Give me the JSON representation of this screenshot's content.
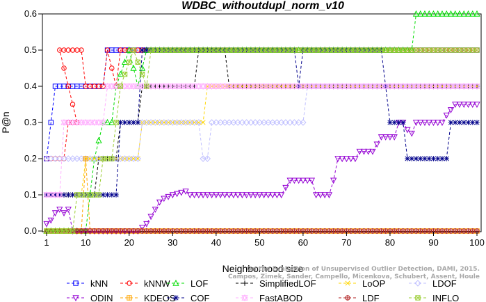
{
  "chart_data": {
    "type": "line",
    "title": "WDBC_withoutdupl_norm_v10",
    "xlabel": "Neighborhood size",
    "ylabel": "P@n",
    "xlim": [
      1,
      100
    ],
    "ylim": [
      0,
      0.6
    ],
    "x_ticks": [
      1,
      10,
      20,
      30,
      40,
      50,
      60,
      70,
      80,
      90,
      100
    ],
    "y_ticks": [
      0.0,
      0.1,
      0.2,
      0.3,
      0.4,
      0.5,
      0.6
    ],
    "grid": false,
    "legend_position": "bottom",
    "credit": "Campos, Zimek, Sander, Campello, Micenkova, Schubert, Assent, Houle\nOn the Evaluation of Unsupervised Outlier Detection, DAMI, 2015.",
    "series": [
      {
        "name": "kNN",
        "color": "#0000ff",
        "marker": "square",
        "points": [
          [
            1,
            0.2
          ],
          [
            2,
            0.3
          ],
          [
            3,
            0.4
          ],
          [
            14,
            0.4
          ],
          [
            15,
            0.5
          ],
          [
            100,
            0.5
          ]
        ]
      },
      {
        "name": "kNNW",
        "color": "#ff0000",
        "marker": "circle",
        "points": [
          [
            1,
            0.2
          ],
          [
            5,
            0.2
          ],
          [
            6,
            0.3
          ],
          [
            8,
            0.3
          ],
          [
            4,
            0.5
          ],
          [
            9,
            0.5
          ],
          [
            10,
            0.4
          ],
          [
            14,
            0.4
          ],
          [
            15,
            0.5
          ],
          [
            17,
            0.4
          ],
          [
            18,
            0.5
          ],
          [
            100,
            0.5
          ]
        ]
      },
      {
        "name": "LOF",
        "color": "#00dd00",
        "marker": "triangle-up",
        "points": [
          [
            1,
            0.0
          ],
          [
            10,
            0.0
          ],
          [
            11,
            0.1
          ],
          [
            12,
            0.2
          ],
          [
            14,
            0.3
          ],
          [
            16,
            0.3
          ],
          [
            17,
            0.4
          ],
          [
            20,
            0.5
          ],
          [
            22,
            0.4
          ],
          [
            24,
            0.5
          ],
          [
            85,
            0.5
          ],
          [
            86,
            0.6
          ],
          [
            100,
            0.6
          ]
        ]
      },
      {
        "name": "SimplifiedLOF",
        "color": "#000000",
        "marker": "plus",
        "points": [
          [
            1,
            0.1
          ],
          [
            6,
            0.1
          ],
          [
            7,
            0.1
          ],
          [
            12,
            0.1
          ],
          [
            13,
            0.2
          ],
          [
            17,
            0.2
          ],
          [
            18,
            0.3
          ],
          [
            22,
            0.3
          ],
          [
            23,
            0.4
          ],
          [
            35,
            0.4
          ],
          [
            36,
            0.5
          ],
          [
            42,
            0.5
          ],
          [
            43,
            0.4
          ],
          [
            100,
            0.4
          ]
        ]
      },
      {
        "name": "LoOP",
        "color": "#ffd700",
        "marker": "x",
        "points": [
          [
            1,
            0.1
          ],
          [
            9,
            0.1
          ],
          [
            10,
            0.2
          ],
          [
            22,
            0.2
          ],
          [
            23,
            0.3
          ],
          [
            37,
            0.3
          ],
          [
            38,
            0.4
          ],
          [
            100,
            0.4
          ]
        ]
      },
      {
        "name": "LDOF",
        "color": "#c0c0ff",
        "marker": "diamond",
        "points": [
          [
            1,
            0.2
          ],
          [
            22,
            0.2
          ],
          [
            23,
            0.3
          ],
          [
            36,
            0.3
          ],
          [
            37,
            0.2
          ],
          [
            38,
            0.2
          ],
          [
            39,
            0.3
          ],
          [
            60,
            0.3
          ],
          [
            61,
            0.4
          ],
          [
            100,
            0.4
          ]
        ]
      },
      {
        "name": "ODIN",
        "color": "#9400d3",
        "marker": "triangle-down",
        "points": [
          [
            1,
            0.02
          ],
          [
            2,
            0.03
          ],
          [
            3,
            0.05
          ],
          [
            4,
            0.06
          ],
          [
            5,
            0.05
          ],
          [
            6,
            0.06
          ],
          [
            7,
            0.0
          ],
          [
            22,
            0.0
          ],
          [
            24,
            0.02
          ],
          [
            25,
            0.04
          ],
          [
            26,
            0.06
          ],
          [
            27,
            0.08
          ],
          [
            28,
            0.09
          ],
          [
            30,
            0.1
          ],
          [
            33,
            0.11
          ],
          [
            34,
            0.1
          ],
          [
            55,
            0.1
          ],
          [
            56,
            0.12
          ],
          [
            57,
            0.14
          ],
          [
            62,
            0.14
          ],
          [
            63,
            0.1
          ],
          [
            66,
            0.1
          ],
          [
            67,
            0.14
          ],
          [
            68,
            0.2
          ],
          [
            72,
            0.2
          ],
          [
            73,
            0.22
          ],
          [
            76,
            0.22
          ],
          [
            77,
            0.24
          ],
          [
            78,
            0.26
          ],
          [
            81,
            0.26
          ],
          [
            82,
            0.3
          ],
          [
            83,
            0.3
          ],
          [
            84,
            0.28
          ],
          [
            85,
            0.27
          ],
          [
            86,
            0.3
          ],
          [
            92,
            0.3
          ],
          [
            93,
            0.32
          ],
          [
            95,
            0.35
          ],
          [
            100,
            0.35
          ]
        ]
      },
      {
        "name": "KDEOS",
        "color": "#ffa500",
        "marker": "square-cross",
        "points": [
          [
            1,
            0.0
          ],
          [
            9,
            0.0
          ],
          [
            10,
            0.2
          ],
          [
            11,
            0.0
          ],
          [
            100,
            0.0
          ]
        ]
      },
      {
        "name": "COF",
        "color": "#00008b",
        "marker": "asterisk",
        "points": [
          [
            1,
            0.1
          ],
          [
            13,
            0.1
          ],
          [
            15,
            0.1
          ],
          [
            17,
            0.1
          ],
          [
            18,
            0.3
          ],
          [
            22,
            0.3
          ],
          [
            23,
            0.5
          ],
          [
            58,
            0.5
          ],
          [
            59,
            0.4
          ],
          [
            60,
            0.5
          ],
          [
            78,
            0.5
          ],
          [
            80,
            0.3
          ],
          [
            83,
            0.3
          ],
          [
            84,
            0.2
          ],
          [
            93,
            0.2
          ],
          [
            94,
            0.3
          ],
          [
            100,
            0.3
          ]
        ]
      },
      {
        "name": "FastABOD",
        "color": "#ffb0ff",
        "marker": "triangle-cross",
        "points": [
          [
            1,
            0.1
          ],
          [
            4,
            0.1
          ],
          [
            5,
            0.3
          ],
          [
            10,
            0.3
          ],
          [
            11,
            0.3
          ],
          [
            14,
            0.3
          ],
          [
            15,
            0.4
          ],
          [
            100,
            0.4
          ]
        ]
      },
      {
        "name": "LDF",
        "color": "#b22222",
        "marker": "circle-plus",
        "points": [
          [
            1,
            0.0
          ],
          [
            100,
            0.0
          ]
        ]
      },
      {
        "name": "INFLO",
        "color": "#9acd32",
        "marker": "square-x",
        "points": [
          [
            1,
            0.0
          ],
          [
            7,
            0.0
          ],
          [
            8,
            0.1
          ],
          [
            13,
            0.1
          ],
          [
            14,
            0.2
          ],
          [
            16,
            0.2
          ],
          [
            18,
            0.4
          ],
          [
            21,
            0.5
          ],
          [
            24,
            0.4
          ],
          [
            25,
            0.5
          ],
          [
            100,
            0.5
          ]
        ]
      }
    ]
  }
}
